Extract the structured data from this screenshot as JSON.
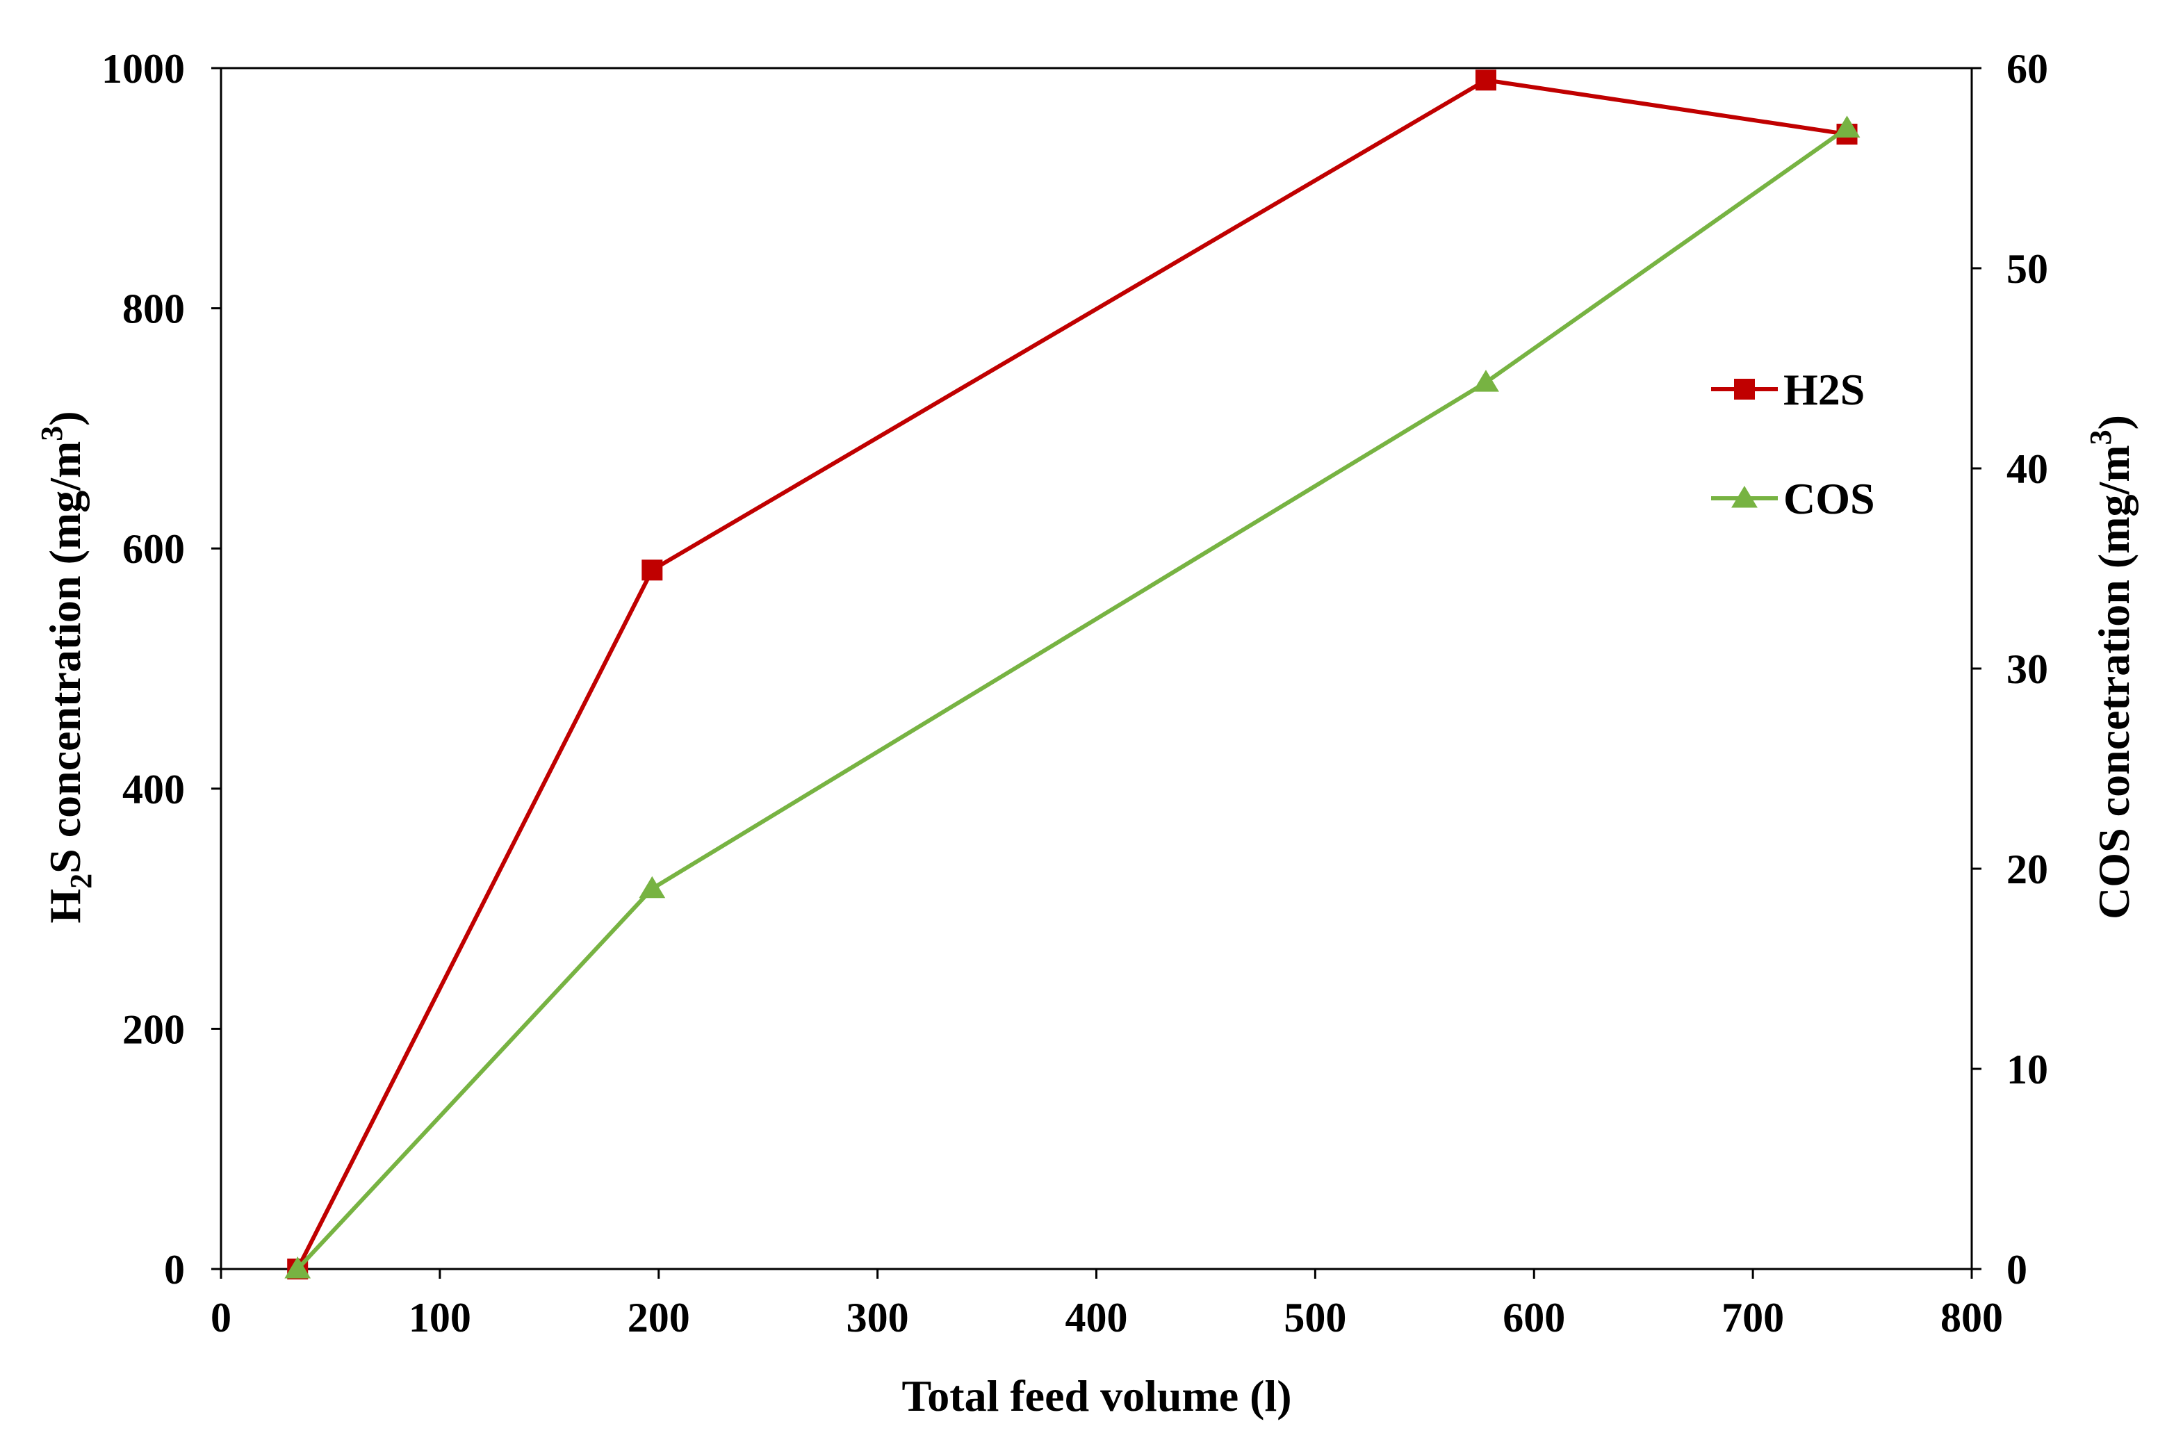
{
  "chart_data": {
    "type": "line",
    "title": "",
    "x_axis": {
      "label": "Total feed volume (l)",
      "range": [
        0,
        800
      ],
      "ticks": [
        "0",
        "100",
        "200",
        "300",
        "400",
        "500",
        "600",
        "700",
        "800"
      ]
    },
    "y_axis_left": {
      "label_main": "H",
      "label_sub": "2",
      "label_rest": "S concentration  (mg/m",
      "label_sup": "3",
      "label_end": ")",
      "range": [
        0,
        1000
      ],
      "ticks": [
        "0",
        "200",
        "400",
        "600",
        "800",
        "1000"
      ]
    },
    "y_axis_right": {
      "label_main": "COS concetration (mg/m",
      "label_sup": "3",
      "label_end": ")",
      "range": [
        0,
        60
      ],
      "ticks": [
        "0",
        "10",
        "20",
        "30",
        "40",
        "50",
        "60"
      ]
    },
    "grid": false,
    "legend_position": "right",
    "series": [
      {
        "name": "H2S",
        "axis": "left",
        "color": "#C00000",
        "marker": "square",
        "x": [
          35,
          197,
          578,
          743
        ],
        "y": [
          0,
          582,
          990,
          945
        ]
      },
      {
        "name": "COS",
        "axis": "right",
        "color": "#77B342",
        "marker": "triangle",
        "x": [
          35,
          197,
          578,
          743
        ],
        "y": [
          0,
          19,
          44.3,
          57
        ]
      }
    ]
  }
}
